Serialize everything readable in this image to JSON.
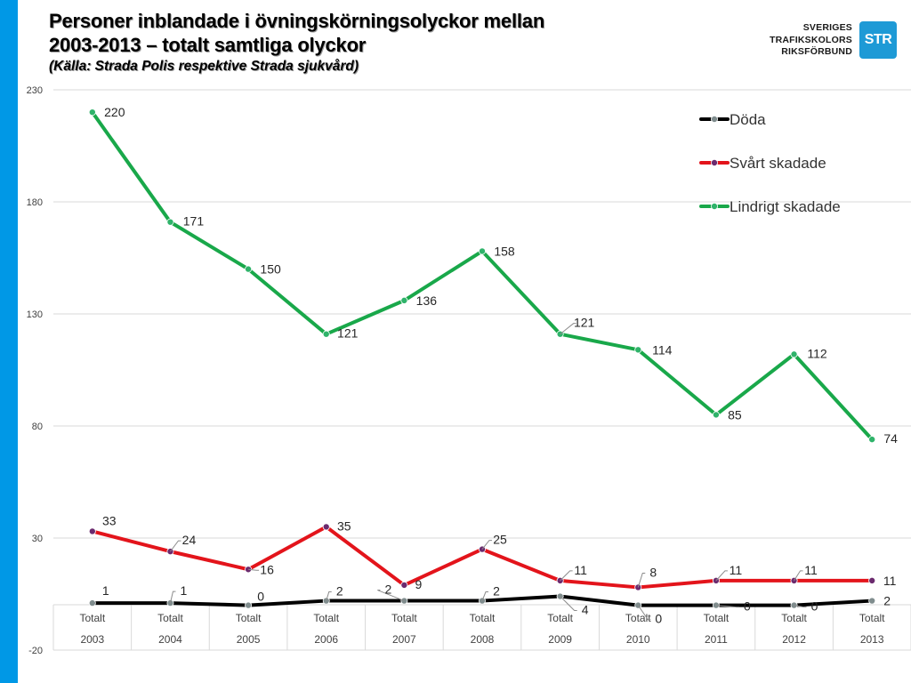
{
  "colors": {
    "left_bar": "#0098e6",
    "logo_box": "#1e9ad6",
    "doda": "#000000",
    "svart": "#e3141b",
    "lindrigt": "#19a84a",
    "marker_doda": "#7f8c8d",
    "marker_svart": "#6b2a6e",
    "marker_lindrigt": "#2fb36a",
    "grid": "#d9d9d9"
  },
  "header": {
    "title_line1": "Personer inblandade i övningskörningsolyckor mellan",
    "title_line2": "2003-2013 – totalt samtliga olyckor",
    "subtitle": "(Källa: Strada Polis respektive Strada sjukvård)"
  },
  "logo": {
    "line1": "SVERIGES",
    "line2": "TRAFIKSKOLORS",
    "line3": "RIKSFÖRBUND",
    "box_text": "STR"
  },
  "chart_data": {
    "type": "line",
    "categories": [
      [
        "Totalt",
        "2003"
      ],
      [
        "Totalt",
        "2004"
      ],
      [
        "Totalt",
        "2005"
      ],
      [
        "Totalt",
        "2006"
      ],
      [
        "Totalt",
        "2007"
      ],
      [
        "Totalt",
        "2008"
      ],
      [
        "Totalt",
        "2009"
      ],
      [
        "Totalt",
        "2010"
      ],
      [
        "Totalt",
        "2011"
      ],
      [
        "Totalt",
        "2012"
      ],
      [
        "Totalt",
        "2013"
      ]
    ],
    "ylim": [
      -20,
      230
    ],
    "yticks": [
      -20,
      30,
      80,
      130,
      180,
      230
    ],
    "grid": true,
    "legend_position": "top-right",
    "series": [
      {
        "name": "Döda",
        "color": "#000000",
        "marker_color": "#7f8c8d",
        "values": [
          1,
          1,
          0,
          2,
          2,
          2,
          4,
          0,
          0,
          0,
          2
        ]
      },
      {
        "name": "Svårt skadade",
        "color": "#e3141b",
        "marker_color": "#6b2a6e",
        "values": [
          33,
          24,
          16,
          35,
          9,
          25,
          11,
          8,
          11,
          11,
          11
        ]
      },
      {
        "name": "Lindrigt skadade",
        "color": "#19a84a",
        "marker_color": "#2fb36a",
        "values": [
          220,
          171,
          150,
          121,
          136,
          158,
          121,
          114,
          85,
          112,
          74
        ]
      }
    ],
    "data_labels": [
      [
        "1",
        "1",
        "0",
        "2",
        "2",
        "2",
        "4",
        "0",
        "0",
        "0",
        "2"
      ],
      [
        "33",
        "24",
        "16",
        "35",
        "9",
        "25",
        "11",
        "8",
        "11",
        "11",
        "11"
      ],
      [
        "220",
        "171",
        "150",
        "121",
        "136",
        "158",
        "121",
        "114",
        "85",
        "112",
        "74"
      ]
    ]
  }
}
